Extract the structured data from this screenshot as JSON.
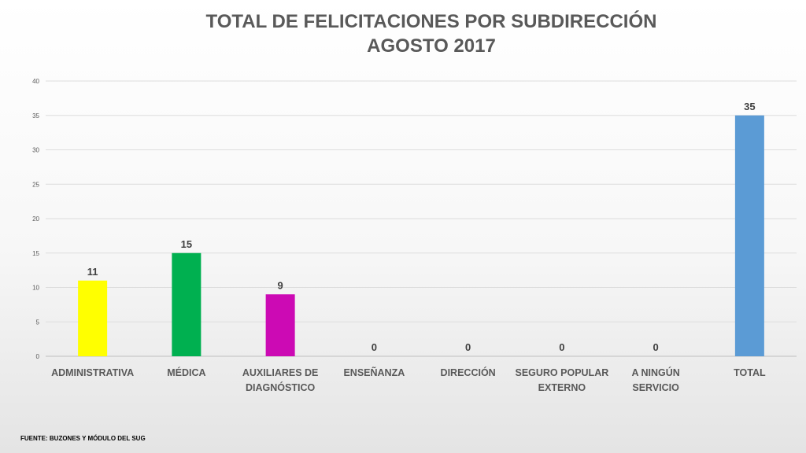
{
  "title": {
    "line1": "TOTAL DE FELICITACIONES POR SUBDIRECCIÓN",
    "line2": "AGOSTO 2017"
  },
  "source": "FUENTE: BUZONES Y MÓDULO DEL SUG",
  "chart_data": {
    "type": "bar",
    "categories": [
      [
        "ADMINISTRATIVA"
      ],
      [
        "MÉDICA"
      ],
      [
        "AUXILIARES DE",
        "DIAGNÓSTICO"
      ],
      [
        "ENSEÑANZA"
      ],
      [
        "DIRECCIÓN"
      ],
      [
        "SEGURO POPULAR",
        "EXTERNO"
      ],
      [
        "A NINGÚN",
        "SERVICIO"
      ],
      [
        "TOTAL"
      ]
    ],
    "values": [
      11,
      15,
      9,
      0,
      0,
      0,
      0,
      35
    ],
    "colors": [
      "#ffff00",
      "#00b050",
      "#cc0ab4",
      "#999999",
      "#999999",
      "#999999",
      "#999999",
      "#5b9bd5"
    ],
    "ylim": [
      0,
      40
    ],
    "yticks": [
      0,
      5,
      10,
      15,
      20,
      25,
      30,
      35,
      40
    ],
    "grid": true,
    "legend": "none",
    "xlabel": "",
    "ylabel": ""
  }
}
